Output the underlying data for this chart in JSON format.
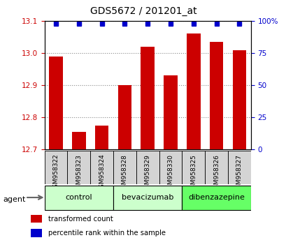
{
  "title": "GDS5672 / 201201_at",
  "samples": [
    "GSM958322",
    "GSM958323",
    "GSM958324",
    "GSM958328",
    "GSM958329",
    "GSM958330",
    "GSM958325",
    "GSM958326",
    "GSM958327"
  ],
  "bar_values": [
    12.99,
    12.755,
    12.775,
    12.9,
    13.02,
    12.93,
    13.06,
    13.035,
    13.01
  ],
  "bar_color": "#cc0000",
  "percentile_color": "#0000cc",
  "ylim_left": [
    12.7,
    13.1
  ],
  "yticks_left": [
    12.7,
    12.8,
    12.9,
    13.0,
    13.1
  ],
  "ylim_right": [
    0,
    100
  ],
  "yticks_right": [
    0,
    25,
    50,
    75,
    100
  ],
  "yticklabels_right": [
    "0",
    "25",
    "50",
    "75",
    "100%"
  ],
  "groups": [
    {
      "label": "control",
      "indices": [
        0,
        1,
        2
      ],
      "color": "#ccffcc"
    },
    {
      "label": "bevacizumab",
      "indices": [
        3,
        4,
        5
      ],
      "color": "#ccffcc"
    },
    {
      "label": "dibenzazepine",
      "indices": [
        6,
        7,
        8
      ],
      "color": "#66ff66"
    }
  ],
  "agent_label": "agent",
  "legend_items": [
    {
      "label": "transformed count",
      "color": "#cc0000"
    },
    {
      "label": "percentile rank within the sample",
      "color": "#0000cc"
    }
  ],
  "bar_width": 0.6,
  "background_color": "#ffffff",
  "grid_color": "#888888",
  "tick_color_left": "#cc0000",
  "tick_color_right": "#0000cc",
  "label_fontsize": 7.5,
  "title_fontsize": 10
}
